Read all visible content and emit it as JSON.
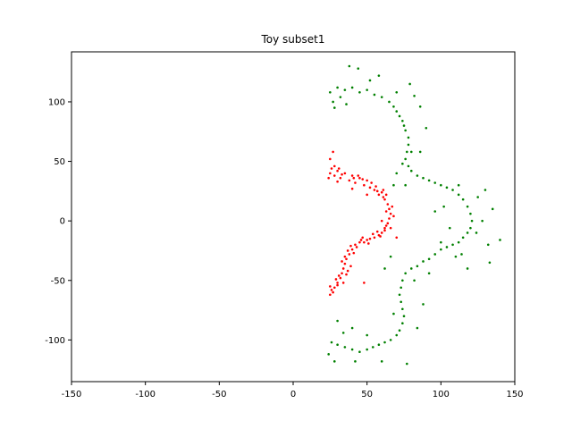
{
  "chart_data": {
    "type": "scatter",
    "title": "Toy subset1",
    "xlabel": "",
    "ylabel": "",
    "xlim": [
      -150,
      150
    ],
    "ylim": [
      -135,
      142
    ],
    "xticks": [
      -150,
      -100,
      -50,
      0,
      50,
      100,
      150
    ],
    "yticks": [
      -100,
      -50,
      0,
      50,
      100
    ],
    "grid": false,
    "legend": "none",
    "series": [
      {
        "color": "#ff0000",
        "points": [
          [
            25,
            40
          ],
          [
            28,
            38
          ],
          [
            30,
            42
          ],
          [
            32,
            36
          ],
          [
            35,
            40
          ],
          [
            38,
            34
          ],
          [
            40,
            38
          ],
          [
            42,
            32
          ],
          [
            45,
            36
          ],
          [
            48,
            30
          ],
          [
            50,
            34
          ],
          [
            52,
            28
          ],
          [
            55,
            26
          ],
          [
            58,
            22
          ],
          [
            60,
            24
          ],
          [
            62,
            18
          ],
          [
            64,
            14
          ],
          [
            65,
            10
          ],
          [
            66,
            6
          ],
          [
            65,
            2
          ],
          [
            64,
            -2
          ],
          [
            63,
            -4
          ],
          [
            62,
            -8
          ],
          [
            60,
            -10
          ],
          [
            58,
            -12
          ],
          [
            55,
            -14
          ],
          [
            52,
            -15
          ],
          [
            50,
            -16
          ],
          [
            48,
            -18
          ],
          [
            45,
            -18
          ],
          [
            42,
            -20
          ],
          [
            40,
            -24
          ],
          [
            38,
            -28
          ],
          [
            36,
            -32
          ],
          [
            35,
            -36
          ],
          [
            34,
            -40
          ],
          [
            33,
            -44
          ],
          [
            32,
            -48
          ],
          [
            30,
            -52
          ],
          [
            28,
            -56
          ],
          [
            26,
            -58
          ],
          [
            25,
            -55
          ],
          [
            30,
            -54
          ],
          [
            37,
            -42
          ],
          [
            39,
            -38
          ],
          [
            26,
            44
          ],
          [
            30,
            33
          ],
          [
            33,
            39
          ],
          [
            44,
            38
          ],
          [
            47,
            35
          ],
          [
            53,
            32
          ],
          [
            57,
            25
          ],
          [
            61,
            26
          ],
          [
            63,
            22
          ],
          [
            67,
            12
          ],
          [
            68,
            4
          ],
          [
            66,
            -6
          ],
          [
            59,
            -13
          ],
          [
            54,
            -11
          ],
          [
            46,
            -16
          ],
          [
            43,
            -22
          ],
          [
            41,
            -27
          ],
          [
            37,
            -25
          ],
          [
            35,
            -30
          ],
          [
            33,
            -34
          ],
          [
            31,
            -46
          ],
          [
            29,
            -49
          ],
          [
            27,
            -60
          ],
          [
            25,
            -62
          ],
          [
            24,
            36
          ],
          [
            28,
            46
          ],
          [
            31,
            44
          ],
          [
            41,
            36
          ],
          [
            56,
            29
          ],
          [
            61,
            20
          ],
          [
            63,
            8
          ],
          [
            60,
            0
          ],
          [
            62,
            -6
          ],
          [
            57,
            -9
          ],
          [
            51,
            -19
          ],
          [
            47,
            -14
          ],
          [
            39,
            -21
          ],
          [
            36,
            -45
          ],
          [
            34,
            -52
          ],
          [
            27,
            58
          ],
          [
            25,
            52
          ],
          [
            40,
            27
          ],
          [
            50,
            22
          ],
          [
            70,
            -14
          ],
          [
            48,
            -52
          ]
        ]
      },
      {
        "color": "#008000",
        "points": [
          [
            25,
            108
          ],
          [
            30,
            112
          ],
          [
            35,
            110
          ],
          [
            40,
            112
          ],
          [
            45,
            108
          ],
          [
            50,
            110
          ],
          [
            55,
            106
          ],
          [
            60,
            104
          ],
          [
            65,
            100
          ],
          [
            68,
            96
          ],
          [
            70,
            92
          ],
          [
            72,
            88
          ],
          [
            74,
            84
          ],
          [
            75,
            80
          ],
          [
            76,
            76
          ],
          [
            78,
            70
          ],
          [
            78,
            64
          ],
          [
            77,
            58
          ],
          [
            76,
            52
          ],
          [
            78,
            46
          ],
          [
            80,
            42
          ],
          [
            84,
            38
          ],
          [
            88,
            36
          ],
          [
            92,
            34
          ],
          [
            96,
            32
          ],
          [
            100,
            30
          ],
          [
            104,
            28
          ],
          [
            108,
            26
          ],
          [
            112,
            22
          ],
          [
            115,
            18
          ],
          [
            118,
            12
          ],
          [
            120,
            6
          ],
          [
            121,
            0
          ],
          [
            120,
            -6
          ],
          [
            118,
            -10
          ],
          [
            115,
            -14
          ],
          [
            112,
            -18
          ],
          [
            108,
            -20
          ],
          [
            104,
            -22
          ],
          [
            100,
            -24
          ],
          [
            96,
            -28
          ],
          [
            92,
            -32
          ],
          [
            88,
            -34
          ],
          [
            84,
            -38
          ],
          [
            80,
            -40
          ],
          [
            76,
            -44
          ],
          [
            74,
            -50
          ],
          [
            73,
            -56
          ],
          [
            72,
            -62
          ],
          [
            73,
            -68
          ],
          [
            74,
            -74
          ],
          [
            75,
            -80
          ],
          [
            74,
            -86
          ],
          [
            72,
            -92
          ],
          [
            70,
            -96
          ],
          [
            66,
            -100
          ],
          [
            62,
            -102
          ],
          [
            58,
            -104
          ],
          [
            54,
            -106
          ],
          [
            50,
            -108
          ],
          [
            45,
            -110
          ],
          [
            40,
            -108
          ],
          [
            35,
            -106
          ],
          [
            30,
            -104
          ],
          [
            26,
            -102
          ],
          [
            24,
            -112
          ],
          [
            28,
            -118
          ],
          [
            42,
            -118
          ],
          [
            60,
            -118
          ],
          [
            77,
            -120
          ],
          [
            28,
            95
          ],
          [
            27,
            100
          ],
          [
            32,
            104
          ],
          [
            38,
            130
          ],
          [
            44,
            128
          ],
          [
            58,
            122
          ],
          [
            79,
            115
          ],
          [
            82,
            105
          ],
          [
            86,
            96
          ],
          [
            90,
            78
          ],
          [
            86,
            58
          ],
          [
            70,
            40
          ],
          [
            68,
            30
          ],
          [
            102,
            12
          ],
          [
            96,
            8
          ],
          [
            106,
            -6
          ],
          [
            110,
            -30
          ],
          [
            118,
            -40
          ],
          [
            128,
            0
          ],
          [
            132,
            -20
          ],
          [
            135,
            10
          ],
          [
            140,
            -16
          ],
          [
            133,
            -35
          ],
          [
            125,
            20
          ],
          [
            130,
            26
          ],
          [
            66,
            -30
          ],
          [
            62,
            -40
          ],
          [
            68,
            -78
          ],
          [
            84,
            -90
          ],
          [
            88,
            -70
          ],
          [
            50,
            -96
          ],
          [
            40,
            -90
          ],
          [
            34,
            -94
          ],
          [
            30,
            -84
          ],
          [
            82,
            -50
          ],
          [
            92,
            -44
          ],
          [
            100,
            -18
          ],
          [
            114,
            -28
          ],
          [
            124,
            -10
          ],
          [
            112,
            30
          ],
          [
            80,
            58
          ],
          [
            76,
            30
          ],
          [
            74,
            48
          ],
          [
            70,
            108
          ],
          [
            52,
            118
          ],
          [
            36,
            98
          ]
        ]
      }
    ]
  }
}
